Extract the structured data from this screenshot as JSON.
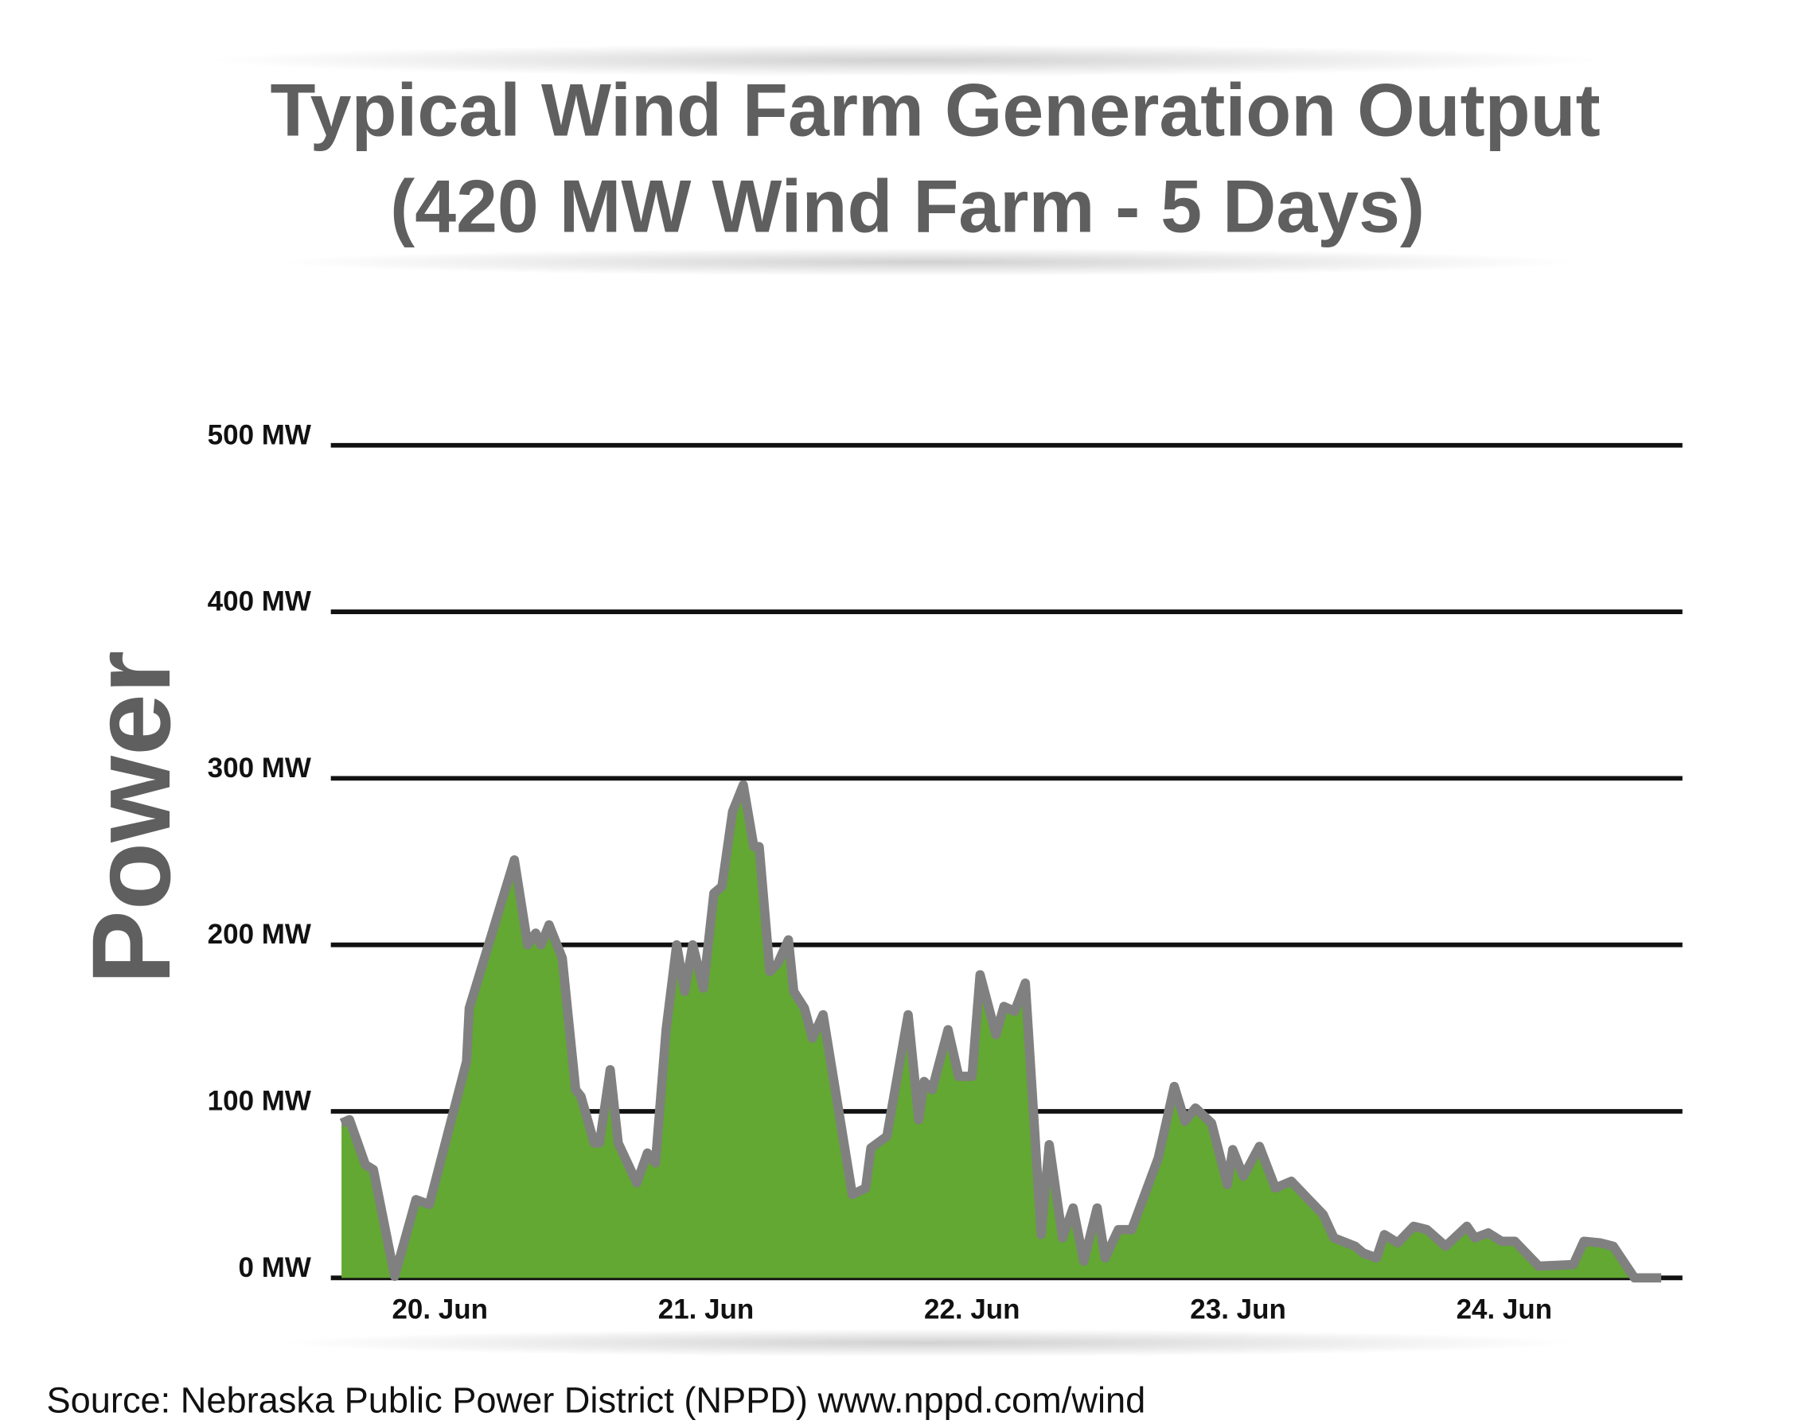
{
  "chart_data": {
    "type": "area",
    "title": "Typical Wind Farm Generation Output",
    "subtitle": "(420 MW Wind Farm - 5 Days)",
    "y_label": "Power",
    "source": "Source: Nebraska Public Power District (NPPD) www.nppd.com/wind",
    "x": [
      19.63,
      19.66,
      19.72,
      19.75,
      19.83,
      19.91,
      19.96,
      20.1,
      20.11,
      20.28,
      20.33,
      20.36,
      20.38,
      20.41,
      20.46,
      20.51,
      20.53,
      20.58,
      20.6,
      20.64,
      20.67,
      20.74,
      20.78,
      20.81,
      20.85,
      20.89,
      20.92,
      20.95,
      20.99,
      21.03,
      21.06,
      21.1,
      21.14,
      21.18,
      21.2,
      21.24,
      21.27,
      21.31,
      21.33,
      21.37,
      21.4,
      21.44,
      21.55,
      21.6,
      21.62,
      21.68,
      21.76,
      21.8,
      21.82,
      21.85,
      21.91,
      21.95,
      22.0,
      22.03,
      22.09,
      22.12,
      22.16,
      22.2,
      22.26,
      22.29,
      22.34,
      22.38,
      22.42,
      22.47,
      22.5,
      22.55,
      22.6,
      22.7,
      22.76,
      22.8,
      22.84,
      22.9,
      22.96,
      22.98,
      23.02,
      23.08,
      23.14,
      23.2,
      23.32,
      23.36,
      23.44,
      23.47,
      23.52,
      23.55,
      23.6,
      23.66,
      23.71,
      23.78,
      23.86,
      23.89,
      23.94,
      23.99,
      24.04,
      24.13,
      24.26,
      24.3,
      24.36,
      24.41,
      24.49,
      24.59
    ],
    "series": [
      {
        "name": "Output",
        "color": "#62a832",
        "line_color": "#808080",
        "values": [
          93,
          95,
          68,
          65,
          1,
          47,
          44,
          130,
          162,
          251,
          200,
          207,
          200,
          212,
          192,
          113,
          109,
          81,
          81,
          125,
          81,
          57,
          75,
          69,
          149,
          200,
          172,
          200,
          174,
          231,
          235,
          280,
          296,
          259,
          259,
          184,
          189,
          203,
          172,
          162,
          144,
          158,
          50,
          54,
          78,
          85,
          158,
          95,
          118,
          113,
          149,
          121,
          121,
          182,
          146,
          163,
          160,
          177,
          26,
          80,
          24,
          42,
          10,
          42,
          12,
          29,
          29,
          72,
          115,
          94,
          102,
          93,
          56,
          77,
          61,
          79,
          54,
          58,
          38,
          24,
          19,
          15,
          12,
          26,
          21,
          31,
          29,
          19,
          31,
          24,
          27,
          22,
          22,
          7,
          8,
          22,
          21,
          19,
          0,
          0
        ]
      }
    ],
    "xlim": [
      19.59,
      24.67
    ],
    "xticks": [
      {
        "value": 20,
        "label": "20. Jun"
      },
      {
        "value": 21,
        "label": "21. Jun"
      },
      {
        "value": 22,
        "label": "22. Jun"
      },
      {
        "value": 23,
        "label": "23. Jun"
      },
      {
        "value": 24,
        "label": "24. Jun"
      }
    ],
    "ylim": [
      0,
      500
    ],
    "yticks": [
      {
        "value": 0,
        "label": "0 MW"
      },
      {
        "value": 100,
        "label": "100 MW"
      },
      {
        "value": 200,
        "label": "200 MW"
      },
      {
        "value": 300,
        "label": "300 MW"
      },
      {
        "value": 400,
        "label": "400 MW"
      },
      {
        "value": 500,
        "label": "500 MW"
      }
    ],
    "grid": true
  }
}
